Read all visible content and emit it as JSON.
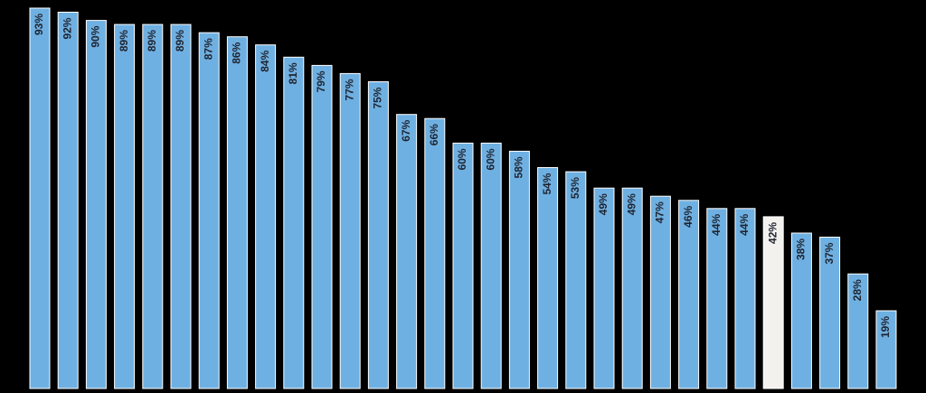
{
  "chart_data": {
    "type": "bar",
    "categories": [
      "",
      "",
      "",
      "",
      "",
      "",
      "",
      "",
      "",
      "",
      "",
      "",
      "",
      "",
      "",
      "",
      "",
      "",
      "",
      "",
      "",
      "",
      "",
      "",
      "",
      "",
      "",
      "",
      "",
      "",
      ""
    ],
    "values": [
      93,
      92,
      90,
      89,
      89,
      89,
      87,
      86,
      84,
      81,
      79,
      77,
      75,
      67,
      66,
      60,
      60,
      58,
      54,
      53,
      49,
      49,
      47,
      46,
      44,
      44,
      42,
      38,
      37,
      28,
      19
    ],
    "labels": [
      "93%",
      "92%",
      "90%",
      "89%",
      "89%",
      "89%",
      "87%",
      "86%",
      "84%",
      "81%",
      "79%",
      "77%",
      "75%",
      "67%",
      "66%",
      "60%",
      "60%",
      "58%",
      "54%",
      "53%",
      "49%",
      "49%",
      "47%",
      "46%",
      "44%",
      "44%",
      "42%",
      "38%",
      "37%",
      "28%",
      "19%"
    ],
    "highlight_index": 26,
    "ylim": [
      0,
      95
    ],
    "grid": false,
    "legend": "none",
    "title": "",
    "xlabel": "",
    "ylabel": ""
  },
  "colors": {
    "background": "#000000",
    "bar": "#6fb0e2",
    "bar_border": "#ffffff",
    "highlight_bar": "#f2f1ee",
    "label": "#1f2430"
  }
}
